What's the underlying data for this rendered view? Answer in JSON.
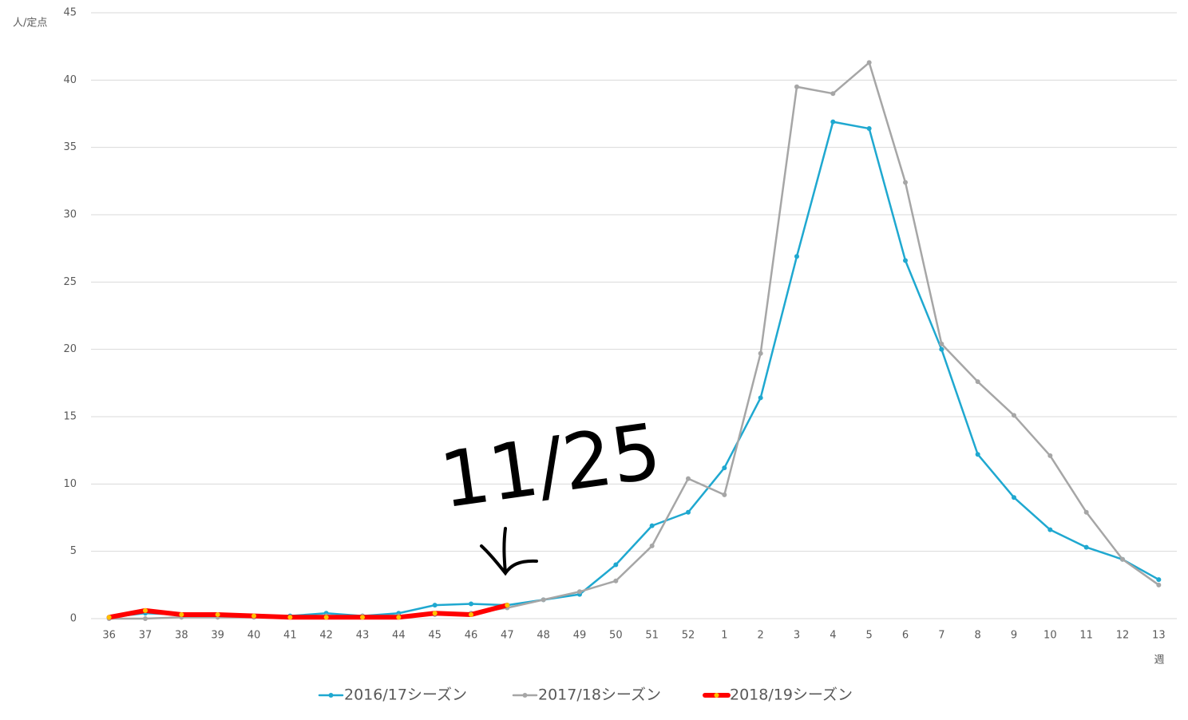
{
  "chart_data": {
    "type": "line",
    "y_axis_label": "人/定点",
    "x_axis_label": "週",
    "annotation": "11/25",
    "categories": [
      "36",
      "37",
      "38",
      "39",
      "40",
      "41",
      "42",
      "43",
      "44",
      "45",
      "46",
      "47",
      "48",
      "49",
      "50",
      "51",
      "52",
      "1",
      "2",
      "3",
      "4",
      "5",
      "6",
      "7",
      "8",
      "9",
      "10",
      "11",
      "12",
      "13"
    ],
    "ylim": [
      0,
      45
    ],
    "yticks": [
      0,
      5,
      10,
      15,
      20,
      25,
      30,
      35,
      40,
      45
    ],
    "grid": true,
    "legend": "bottom",
    "series": [
      {
        "name": "2016/17シーズン",
        "color": "#1fa8d0",
        "marker_color": "#1fa8d0",
        "line_width": 2.5,
        "values": [
          0.1,
          0.4,
          0.3,
          0.2,
          0.2,
          0.2,
          0.4,
          0.2,
          0.4,
          1.0,
          1.1,
          1.0,
          1.4,
          1.8,
          4.0,
          6.9,
          7.9,
          11.2,
          16.4,
          26.9,
          36.9,
          36.4,
          26.6,
          20.0,
          12.2,
          9.0,
          6.6,
          5.3,
          4.4,
          2.9
        ]
      },
      {
        "name": "2017/18シーズン",
        "color": "#a6a6a6",
        "marker_color": "#a6a6a6",
        "line_width": 2.5,
        "values": [
          0.0,
          0.0,
          0.1,
          0.1,
          0.1,
          0.1,
          0.2,
          0.2,
          0.2,
          0.3,
          0.4,
          0.8,
          1.4,
          2.0,
          2.8,
          5.4,
          10.4,
          9.2,
          19.7,
          39.5,
          39.0,
          41.3,
          32.4,
          20.4,
          17.6,
          15.1,
          12.1,
          7.9,
          4.4,
          2.5
        ]
      },
      {
        "name": "2018/19シーズン",
        "color": "#ff0000",
        "marker_color": "#ffc000",
        "line_width": 6,
        "values": [
          0.1,
          0.6,
          0.3,
          0.3,
          0.2,
          0.1,
          0.1,
          0.1,
          0.1,
          0.4,
          0.3,
          1.0,
          null,
          null,
          null,
          null,
          null,
          null,
          null,
          null,
          null,
          null,
          null,
          null,
          null,
          null,
          null,
          null,
          null,
          null
        ]
      }
    ]
  }
}
